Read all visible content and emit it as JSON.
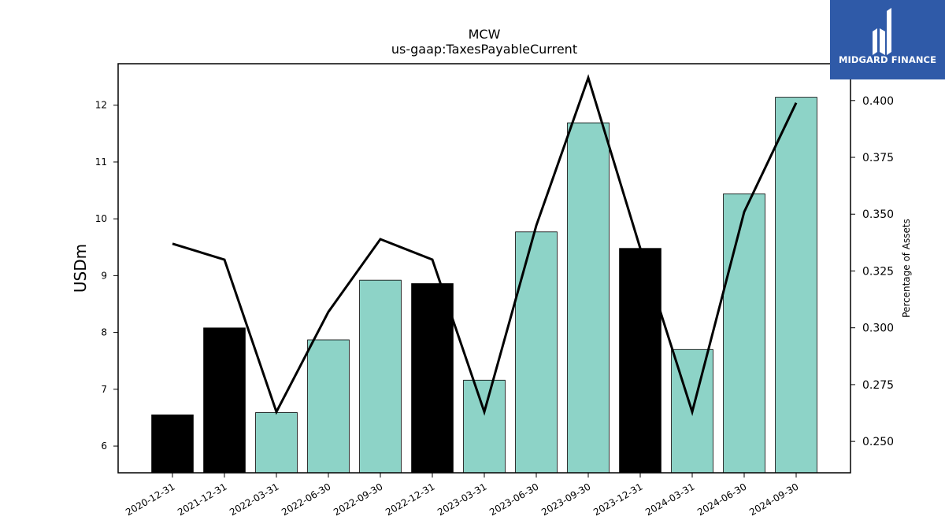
{
  "brand": {
    "name": "MIDGARD FINANCE",
    "logo_icon": "midgard-mark-icon",
    "background": "#2f5aa8"
  },
  "chart_data": {
    "type": "bar",
    "title": "MCW",
    "subtitle": "us-gaap:TaxesPayableCurrent",
    "xlabel": "",
    "ylabel": "USDm",
    "y2label": "Percentage of Assets",
    "categories": [
      "2020-12-31",
      "2021-12-31",
      "2022-03-31",
      "2022-06-30",
      "2022-09-30",
      "2022-12-31",
      "2023-03-31",
      "2023-06-30",
      "2023-09-30",
      "2023-12-31",
      "2024-03-31",
      "2024-06-30",
      "2024-09-30"
    ],
    "series": [
      {
        "type": "bar",
        "values": [
          6.55,
          8.08,
          6.59,
          7.87,
          8.92,
          8.86,
          7.16,
          9.77,
          11.69,
          9.48,
          7.7,
          10.44,
          12.14
        ],
        "colors": [
          "#000000",
          "#000000",
          "#8dd3c7",
          "#8dd3c7",
          "#8dd3c7",
          "#000000",
          "#8dd3c7",
          "#8dd3c7",
          "#8dd3c7",
          "#000000",
          "#8dd3c7",
          "#8dd3c7",
          "#8dd3c7"
        ]
      },
      {
        "type": "line",
        "axis": "right",
        "values": [
          0.337,
          0.33,
          0.263,
          0.307,
          0.339,
          0.33,
          0.263,
          0.345,
          0.41,
          0.335,
          0.263,
          0.351,
          0.399
        ],
        "color": "#000000"
      }
    ],
    "ylim": [
      5.53,
      12.73
    ],
    "yticks": [
      6,
      7,
      8,
      9,
      10,
      11,
      12
    ],
    "y2lim": [
      0.2362,
      0.4162
    ],
    "y2ticks": [
      "0.250",
      "0.275",
      "0.300",
      "0.325",
      "0.350",
      "0.375",
      "0.400"
    ],
    "grid": false
  }
}
